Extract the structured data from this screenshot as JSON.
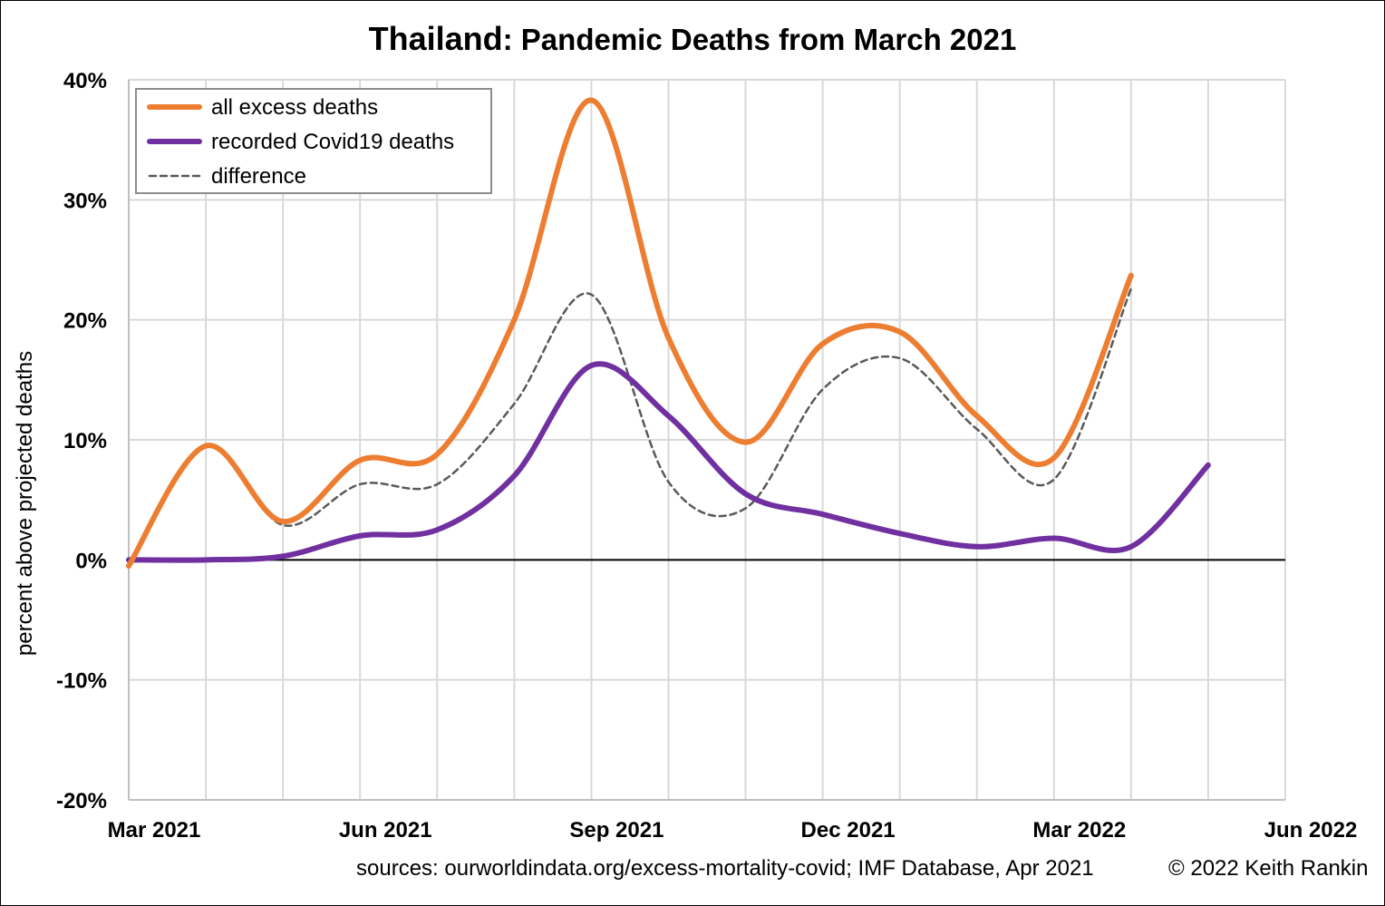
{
  "title_parts": {
    "country": "Thailand",
    "rest": ": Pandemic Deaths from March 2021"
  },
  "footer": {
    "sources": "sources: ourworldindata.org/excess-mortality-covid; IMF Database, Apr 2021",
    "copyright": "© 2022 Keith Rankin"
  },
  "chart_data": {
    "type": "line",
    "title": "Thailand: Pandemic Deaths from March 2021",
    "xlabel": "",
    "ylabel": "percent above projected deaths",
    "x_unit": "month",
    "x_ticks": [
      "Mar 2021",
      "Jun 2021",
      "Sep 2021",
      "Dec 2021",
      "Mar 2022",
      "Jun 2022"
    ],
    "xlim": [
      "2021-03",
      "2022-06"
    ],
    "ylim": [
      -20,
      40
    ],
    "y_ticks": [
      "40%",
      "30%",
      "20%",
      "10%",
      "0%",
      "-10%",
      "-20%"
    ],
    "grid": true,
    "legend_position": "top-left",
    "series": [
      {
        "name": "all excess deaths",
        "color": "#ED7D31",
        "style": "solid",
        "x": [
          "2021-03",
          "2021-04",
          "2021-05",
          "2021-06",
          "2021-07",
          "2021-08",
          "2021-09",
          "2021-10",
          "2021-11",
          "2021-12",
          "2022-01",
          "2022-02",
          "2022-03",
          "2022-04"
        ],
        "values": [
          -0.5,
          9.5,
          3.2,
          8.3,
          8.8,
          20.0,
          38.3,
          18.5,
          9.8,
          18.0,
          19.0,
          12.0,
          8.5,
          23.7
        ]
      },
      {
        "name": "recorded Covid19 deaths",
        "color": "#7030A0",
        "style": "solid",
        "x": [
          "2021-03",
          "2021-04",
          "2021-05",
          "2021-06",
          "2021-07",
          "2021-08",
          "2021-09",
          "2021-10",
          "2021-11",
          "2021-12",
          "2022-01",
          "2022-02",
          "2022-03",
          "2022-04",
          "2022-05"
        ],
        "values": [
          0.0,
          0.0,
          0.3,
          2.0,
          2.5,
          7.0,
          16.2,
          12.0,
          5.5,
          3.8,
          2.2,
          1.1,
          1.8,
          1.1,
          7.9
        ]
      },
      {
        "name": "difference",
        "color": "#595959",
        "style": "dashed",
        "x": [
          "2021-03",
          "2021-04",
          "2021-05",
          "2021-06",
          "2021-07",
          "2021-08",
          "2021-09",
          "2021-10",
          "2021-11",
          "2021-12",
          "2022-01",
          "2022-02",
          "2022-03",
          "2022-04"
        ],
        "values": [
          -0.5,
          9.5,
          2.9,
          6.3,
          6.3,
          13.0,
          22.1,
          6.5,
          4.3,
          14.2,
          16.8,
          10.9,
          6.7,
          22.6
        ]
      }
    ]
  }
}
